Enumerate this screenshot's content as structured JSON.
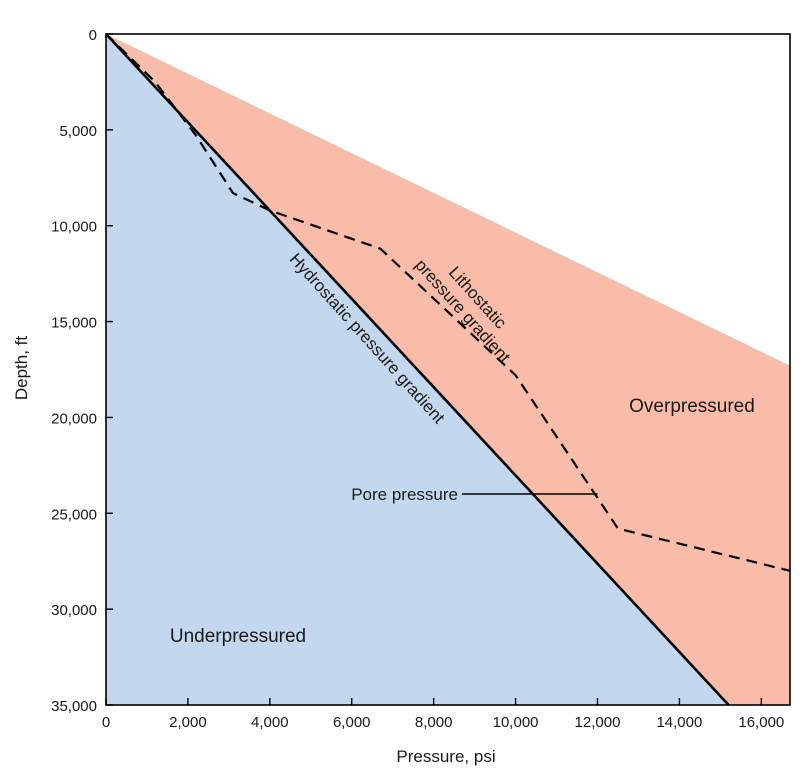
{
  "chart_data": {
    "type": "area",
    "title": "",
    "xlabel": "Pressure, psi",
    "ylabel": "Depth, ft",
    "xlim": [
      0,
      16700
    ],
    "ylim": [
      35000,
      0
    ],
    "x_ticks": [
      0,
      2000,
      4000,
      6000,
      8000,
      10000,
      12000,
      14000,
      16000
    ],
    "x_tick_labels": [
      "0",
      "2,000",
      "4,000",
      "6,000",
      "8,000",
      "10,000",
      "12,000",
      "14,000",
      "16,000"
    ],
    "y_ticks": [
      0,
      5000,
      10000,
      15000,
      20000,
      25000,
      30000,
      35000
    ],
    "y_tick_labels": [
      "0",
      "5,000",
      "10,000",
      "15,000",
      "20,000",
      "25,000",
      "30,000",
      "35,000"
    ],
    "grid": false,
    "colors": {
      "underpressured_fill": "#c3d8ee",
      "overpressured_fill": "#f8bca8",
      "line": "#000000"
    },
    "series": [
      {
        "name": "Hydrostatic pressure gradient",
        "style": "solid",
        "label": "Hydrostatic pressure gradient",
        "points": [
          [
            0,
            0
          ],
          [
            15200,
            35000
          ]
        ]
      },
      {
        "name": "Lithostatic pressure gradient",
        "label_line1": "Lithostatic",
        "label_line2": "pressure gradient",
        "style": "boundary",
        "points": [
          [
            0,
            0
          ],
          [
            16700,
            17300
          ]
        ]
      },
      {
        "name": "Pore pressure",
        "style": "dashed",
        "label": "Pore pressure",
        "points": [
          [
            0,
            0
          ],
          [
            1200,
            2500
          ],
          [
            2200,
            5300
          ],
          [
            3100,
            8300
          ],
          [
            4000,
            9200
          ],
          [
            6700,
            11200
          ],
          [
            10000,
            17800
          ],
          [
            12500,
            25800
          ],
          [
            16700,
            28000
          ]
        ]
      }
    ],
    "regions": [
      {
        "name": "Overpressured",
        "label": "Overpressured"
      },
      {
        "name": "Underpressured",
        "label": "Underpressured"
      }
    ]
  }
}
